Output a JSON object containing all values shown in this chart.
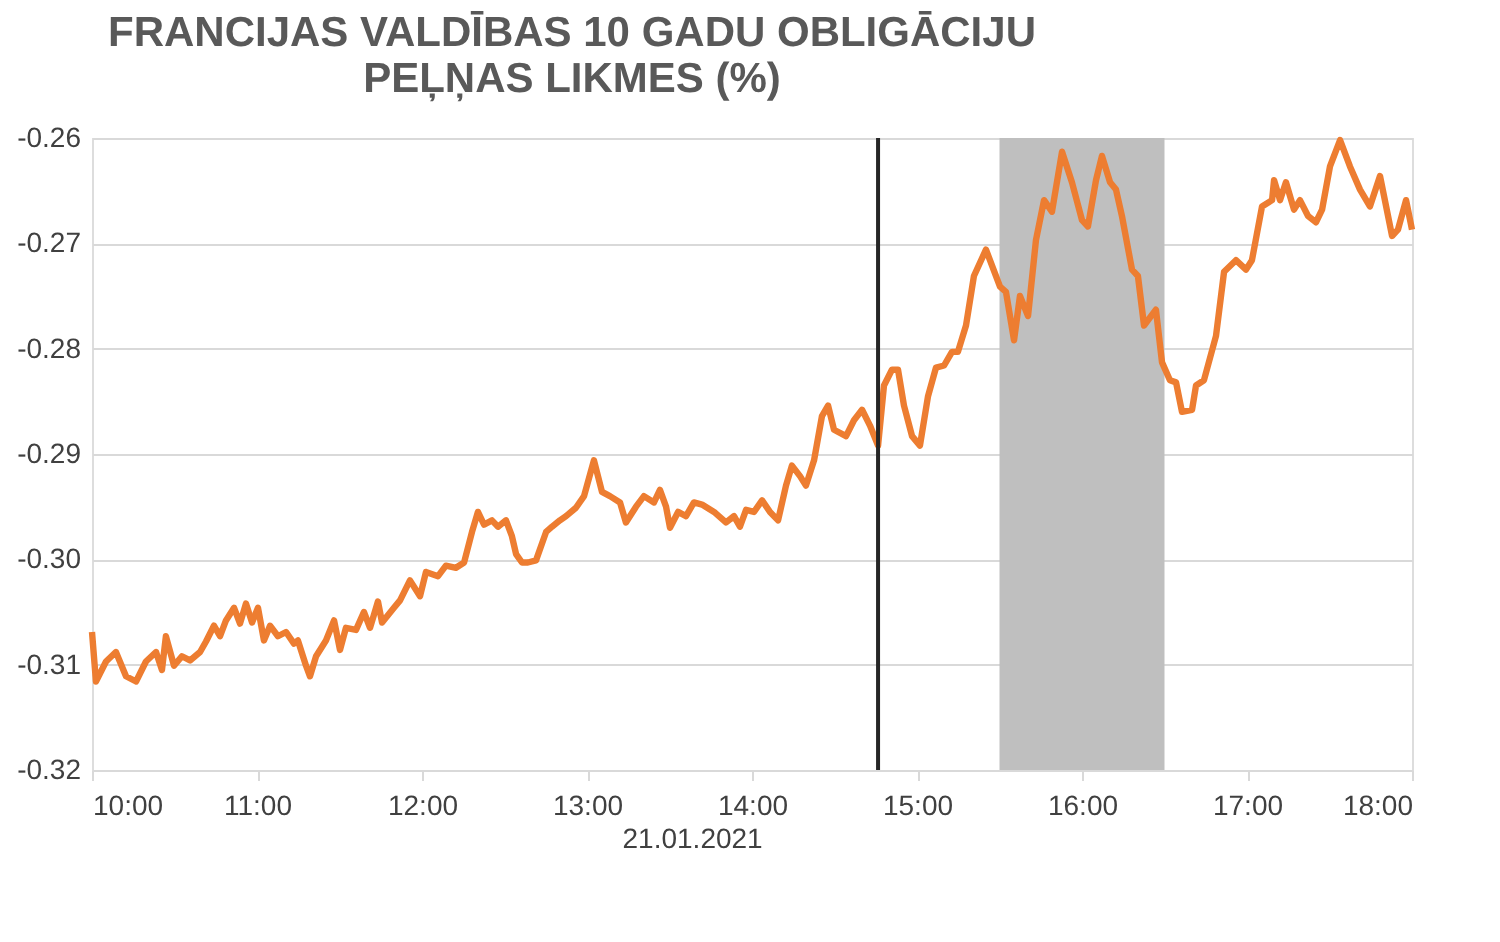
{
  "chart_data": {
    "type": "line",
    "title": [
      "FRANCIJAS VALDĪBAS 10 GADU OBLIGĀCIJU",
      "PEĻŅAS LIKMES (%)"
    ],
    "x": [
      10.0,
      10.024,
      10.085,
      10.145,
      10.206,
      10.267,
      10.327,
      10.388,
      10.424,
      10.448,
      10.497,
      10.545,
      10.594,
      10.655,
      10.691,
      10.739,
      10.776,
      10.812,
      10.861,
      10.897,
      10.933,
      10.97,
      11.006,
      11.042,
      11.079,
      11.127,
      11.176,
      11.224,
      11.248,
      11.297,
      11.321,
      11.358,
      11.418,
      11.467,
      11.503,
      11.539,
      11.6,
      11.648,
      11.685,
      11.733,
      11.758,
      11.83,
      11.867,
      11.927,
      11.988,
      12.024,
      12.097,
      12.145,
      12.206,
      12.255,
      12.303,
      12.339,
      12.376,
      12.424,
      12.461,
      12.509,
      12.545,
      12.57,
      12.606,
      12.642,
      12.691,
      12.752,
      12.788,
      12.836,
      12.873,
      12.933,
      12.982,
      13.042,
      13.091,
      13.139,
      13.2,
      13.236,
      13.297,
      13.345,
      13.406,
      13.442,
      13.479,
      13.503,
      13.552,
      13.6,
      13.648,
      13.697,
      13.77,
      13.842,
      13.891,
      13.927,
      13.964,
      14.012,
      14.061,
      14.109,
      14.158,
      14.206,
      14.242,
      14.291,
      14.327,
      14.376,
      14.424,
      14.461,
      14.497,
      14.57,
      14.618,
      14.667,
      14.715,
      14.764,
      14.8,
      14.848,
      14.885,
      14.921,
      14.97,
      15.018,
      15.067,
      15.115,
      15.164,
      15.212,
      15.248,
      15.297,
      15.345,
      15.418,
      15.503,
      15.539,
      15.588,
      15.624,
      15.673,
      15.721,
      15.77,
      15.818,
      15.879,
      15.939,
      16.0,
      16.036,
      16.085,
      16.121,
      16.17,
      16.206,
      16.242,
      16.303,
      16.339,
      16.376,
      16.448,
      16.485,
      16.533,
      16.57,
      16.606,
      16.667,
      16.691,
      16.739,
      16.812,
      16.861,
      16.933,
      16.994,
      17.03,
      17.091,
      17.152,
      17.164,
      17.2,
      17.236,
      17.285,
      17.321,
      17.37,
      17.418,
      17.455,
      17.503,
      17.564,
      17.624,
      17.685,
      17.745,
      17.806,
      17.879,
      17.915,
      17.964,
      18.0
    ],
    "series": [
      {
        "color": "#ed7d31",
        "values": [
          -0.3069,
          -0.3116,
          -0.3097,
          -0.3088,
          -0.3111,
          -0.3116,
          -0.3097,
          -0.3088,
          -0.3105,
          -0.3073,
          -0.3101,
          -0.3092,
          -0.3096,
          -0.3088,
          -0.3078,
          -0.3063,
          -0.3073,
          -0.3058,
          -0.3046,
          -0.3061,
          -0.3042,
          -0.306,
          -0.3046,
          -0.3077,
          -0.3063,
          -0.3073,
          -0.3069,
          -0.308,
          -0.3077,
          -0.3101,
          -0.3111,
          -0.3092,
          -0.3077,
          -0.3058,
          -0.3086,
          -0.3065,
          -0.3067,
          -0.305,
          -0.3065,
          -0.304,
          -0.306,
          -0.3046,
          -0.3039,
          -0.302,
          -0.3035,
          -0.3012,
          -0.3016,
          -0.3006,
          -0.3008,
          -0.3003,
          -0.2974,
          -0.2955,
          -0.2967,
          -0.2963,
          -0.2969,
          -0.2963,
          -0.2978,
          -0.2995,
          -0.3003,
          -0.3003,
          -0.3001,
          -0.2974,
          -0.2969,
          -0.2963,
          -0.2959,
          -0.2951,
          -0.294,
          -0.2906,
          -0.2936,
          -0.294,
          -0.2946,
          -0.2965,
          -0.295,
          -0.294,
          -0.2946,
          -0.2934,
          -0.295,
          -0.297,
          -0.2955,
          -0.2959,
          -0.2946,
          -0.2948,
          -0.2955,
          -0.2965,
          -0.2959,
          -0.2969,
          -0.2953,
          -0.2955,
          -0.2944,
          -0.2955,
          -0.2963,
          -0.293,
          -0.2911,
          -0.2921,
          -0.293,
          -0.2906,
          -0.2864,
          -0.2854,
          -0.2877,
          -0.2883,
          -0.2868,
          -0.2858,
          -0.2873,
          -0.2892,
          -0.2835,
          -0.282,
          -0.282,
          -0.2854,
          -0.2883,
          -0.2892,
          -0.2845,
          -0.2818,
          -0.2816,
          -0.2803,
          -0.2803,
          -0.2778,
          -0.2731,
          -0.2706,
          -0.2741,
          -0.2746,
          -0.2792,
          -0.275,
          -0.2769,
          -0.2697,
          -0.2659,
          -0.267,
          -0.2613,
          -0.2642,
          -0.2678,
          -0.2684,
          -0.264,
          -0.2617,
          -0.2642,
          -0.2649,
          -0.2674,
          -0.2725,
          -0.2731,
          -0.2778,
          -0.2763,
          -0.2813,
          -0.283,
          -0.2832,
          -0.286,
          -0.2858,
          -0.2835,
          -0.283,
          -0.2788,
          -0.2727,
          -0.2716,
          -0.2725,
          -0.2716,
          -0.2665,
          -0.2659,
          -0.264,
          -0.2659,
          -0.2642,
          -0.2668,
          -0.2659,
          -0.2674,
          -0.268,
          -0.2668,
          -0.2627,
          -0.2602,
          -0.2627,
          -0.2649,
          -0.2665,
          -0.2636,
          -0.2693,
          -0.2687,
          -0.2659,
          -0.2687
        ]
      }
    ],
    "xlim": [
      10,
      18
    ],
    "xticks": [
      {
        "value": 10,
        "label": "10:00"
      },
      {
        "value": 11,
        "label": "11:00"
      },
      {
        "value": 12,
        "label": "12:00"
      },
      {
        "value": 13,
        "label": "13:00"
      },
      {
        "value": 14,
        "label": "14:00"
      },
      {
        "value": 15,
        "label": "15:00"
      },
      {
        "value": 16,
        "label": "16:00"
      },
      {
        "value": 17,
        "label": "17:00"
      },
      {
        "value": 18,
        "label": "18:00"
      }
    ],
    "ylim": [
      -0.32,
      -0.26
    ],
    "yticks": [
      {
        "value": -0.32,
        "label": "-0.32"
      },
      {
        "value": -0.31,
        "label": "-0.31"
      },
      {
        "value": -0.3,
        "label": "-0.30"
      },
      {
        "value": -0.29,
        "label": "-0.29"
      },
      {
        "value": -0.28,
        "label": "-0.28"
      },
      {
        "value": -0.27,
        "label": "-0.27"
      },
      {
        "value": -0.26,
        "label": "-0.26"
      }
    ],
    "ref_lines": [
      {
        "axis": "x",
        "value": 14.764,
        "color": "#262626"
      }
    ],
    "bands": [
      {
        "axis": "x",
        "from": 15.5,
        "to": 16.5,
        "color": "#bfbfbf"
      }
    ],
    "annotations": [
      "21.01.2021"
    ],
    "grid": "y",
    "marker": "none",
    "line_style": "solid"
  }
}
